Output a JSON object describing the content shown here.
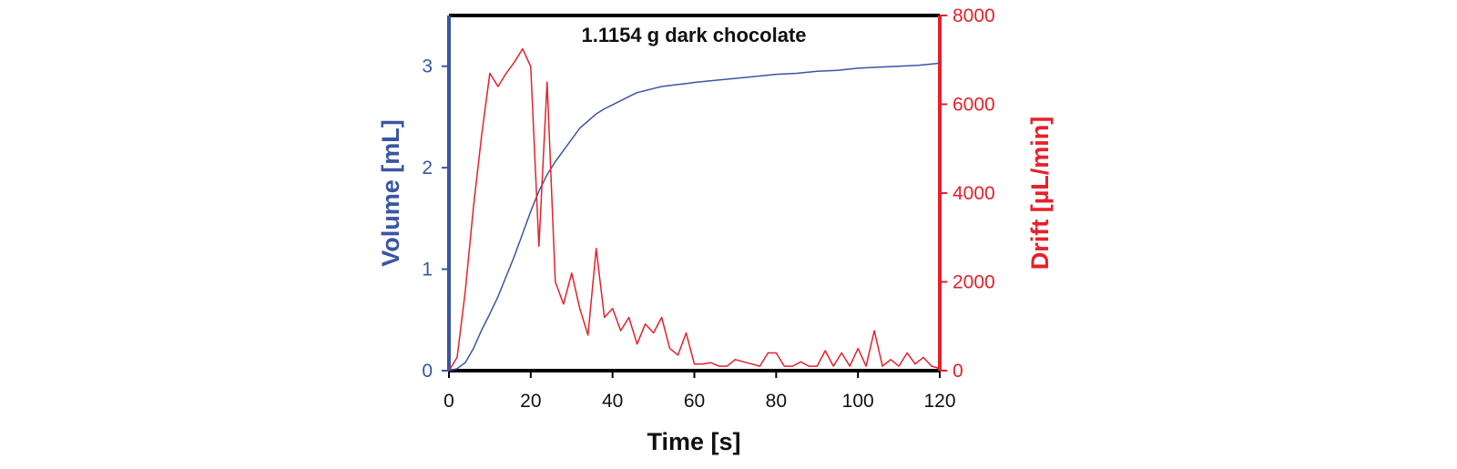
{
  "chart_data": {
    "type": "line",
    "title": "1.1154 g dark chocolate",
    "xlabel": "Time [s]",
    "ylabel_left": "Volume [mL]",
    "ylabel_right": "Drift [µL/min]",
    "xlim": [
      0,
      120
    ],
    "ylim_left": [
      0,
      3.5
    ],
    "ylim_right": [
      0,
      8000
    ],
    "x_ticks": [
      0,
      20,
      40,
      60,
      80,
      100,
      120
    ],
    "y_left_ticks": [
      0,
      1,
      2,
      3
    ],
    "y_right_ticks": [
      0,
      2000,
      4000,
      6000,
      8000
    ],
    "grid": false,
    "series": [
      {
        "name": "Volume",
        "axis": "left",
        "color": "#3a55a4",
        "x": [
          0,
          2,
          4,
          6,
          8,
          10,
          12,
          14,
          16,
          18,
          20,
          22,
          24,
          26,
          28,
          30,
          32,
          34,
          36,
          38,
          40,
          42,
          44,
          46,
          48,
          50,
          52,
          54,
          56,
          58,
          60,
          65,
          70,
          75,
          80,
          85,
          90,
          95,
          100,
          105,
          110,
          115,
          120
        ],
        "y": [
          0.0,
          0.02,
          0.08,
          0.22,
          0.4,
          0.56,
          0.73,
          0.93,
          1.13,
          1.35,
          1.57,
          1.77,
          1.93,
          2.06,
          2.17,
          2.28,
          2.39,
          2.46,
          2.53,
          2.58,
          2.62,
          2.66,
          2.7,
          2.74,
          2.76,
          2.78,
          2.8,
          2.81,
          2.82,
          2.83,
          2.84,
          2.86,
          2.88,
          2.9,
          2.92,
          2.93,
          2.95,
          2.96,
          2.98,
          2.99,
          3.0,
          3.01,
          3.03
        ]
      },
      {
        "name": "Drift",
        "axis": "right",
        "color": "#e8202a",
        "x": [
          0,
          2,
          4,
          6,
          8,
          10,
          12,
          14,
          16,
          18,
          20,
          22,
          24,
          26,
          28,
          30,
          32,
          34,
          36,
          38,
          40,
          42,
          44,
          46,
          48,
          50,
          52,
          54,
          56,
          58,
          60,
          62,
          64,
          66,
          68,
          70,
          72,
          74,
          76,
          78,
          80,
          82,
          84,
          86,
          88,
          90,
          92,
          94,
          96,
          98,
          100,
          102,
          104,
          106,
          108,
          110,
          112,
          114,
          116,
          118,
          120
        ],
        "y": [
          0,
          300,
          1800,
          3700,
          5300,
          6700,
          6400,
          6700,
          6950,
          7250,
          6850,
          2800,
          6500,
          2000,
          1500,
          2200,
          1400,
          800,
          2750,
          1200,
          1400,
          900,
          1200,
          600,
          1050,
          850,
          1200,
          500,
          350,
          850,
          150,
          150,
          180,
          100,
          100,
          250,
          200,
          150,
          100,
          400,
          400,
          100,
          100,
          200,
          100,
          100,
          450,
          100,
          400,
          100,
          500,
          100,
          900,
          100,
          250,
          100,
          400,
          150,
          300,
          100,
          50
        ]
      }
    ]
  }
}
